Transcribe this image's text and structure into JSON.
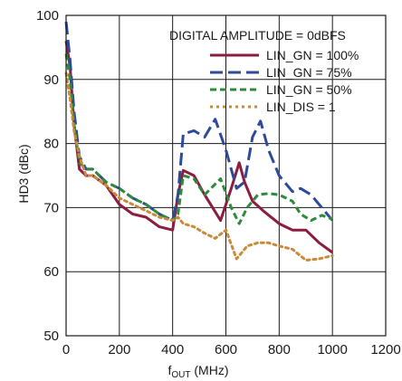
{
  "chart_data": {
    "type": "line",
    "xlabel_main": "f",
    "xlabel_sub": "OUT",
    "xlabel_unit": " (MHz)",
    "ylabel": "HD3 (dBc)",
    "xlim": [
      0,
      1200
    ],
    "ylim": [
      50,
      100
    ],
    "xticks": [
      0,
      200,
      400,
      600,
      800,
      1000,
      1200
    ],
    "yticks": [
      50,
      60,
      70,
      80,
      90,
      100
    ],
    "grid": true,
    "legend_position": "top-right",
    "legend_title": "DIGITAL AMPLITUDE = 0dBFS",
    "series": [
      {
        "name": "LIN_GN = 100%",
        "color": "#8b1e3f",
        "dash": "solid",
        "points": [
          [
            0,
            96
          ],
          [
            15,
            92
          ],
          [
            30,
            83
          ],
          [
            50,
            76
          ],
          [
            75,
            75
          ],
          [
            100,
            75
          ],
          [
            150,
            73.5
          ],
          [
            200,
            70.5
          ],
          [
            250,
            69
          ],
          [
            300,
            68.5
          ],
          [
            350,
            67
          ],
          [
            400,
            66.5
          ],
          [
            420,
            72
          ],
          [
            440,
            75.8
          ],
          [
            480,
            75
          ],
          [
            520,
            72
          ],
          [
            580,
            68
          ],
          [
            620,
            73
          ],
          [
            650,
            77
          ],
          [
            670,
            74
          ],
          [
            700,
            71
          ],
          [
            740,
            69.5
          ],
          [
            800,
            67.5
          ],
          [
            850,
            66.5
          ],
          [
            900,
            66.5
          ],
          [
            950,
            64.5
          ],
          [
            1000,
            63
          ]
        ]
      },
      {
        "name": "LIN_GN = 75%",
        "color": "#2e4a9a",
        "dash": "long-dash",
        "points": [
          [
            0,
            99
          ],
          [
            15,
            93
          ],
          [
            30,
            85
          ],
          [
            50,
            78
          ],
          [
            75,
            76
          ],
          [
            100,
            76
          ],
          [
            150,
            74
          ],
          [
            200,
            73
          ],
          [
            250,
            71.5
          ],
          [
            300,
            70.5
          ],
          [
            350,
            69
          ],
          [
            400,
            68
          ],
          [
            420,
            72
          ],
          [
            440,
            81.5
          ],
          [
            480,
            82
          ],
          [
            520,
            81
          ],
          [
            560,
            83.8
          ],
          [
            600,
            79
          ],
          [
            640,
            73
          ],
          [
            670,
            74
          ],
          [
            700,
            81
          ],
          [
            730,
            83.5
          ],
          [
            760,
            79
          ],
          [
            800,
            75
          ],
          [
            850,
            72.5
          ],
          [
            880,
            73
          ],
          [
            920,
            72
          ],
          [
            960,
            70
          ],
          [
            1000,
            68
          ]
        ]
      },
      {
        "name": "LIN_GN = 50%",
        "color": "#2e8b3a",
        "dash": "dash",
        "points": [
          [
            0,
            94
          ],
          [
            15,
            90
          ],
          [
            30,
            83
          ],
          [
            50,
            77
          ],
          [
            75,
            76
          ],
          [
            100,
            76
          ],
          [
            150,
            74
          ],
          [
            200,
            73
          ],
          [
            250,
            71.5
          ],
          [
            300,
            70.5
          ],
          [
            350,
            69
          ],
          [
            400,
            68
          ],
          [
            420,
            69
          ],
          [
            440,
            75
          ],
          [
            480,
            74.5
          ],
          [
            520,
            72
          ],
          [
            580,
            74.5
          ],
          [
            620,
            70
          ],
          [
            650,
            67.5
          ],
          [
            680,
            70
          ],
          [
            720,
            72
          ],
          [
            760,
            72.2
          ],
          [
            800,
            72
          ],
          [
            850,
            71
          ],
          [
            880,
            69
          ],
          [
            920,
            68
          ],
          [
            960,
            68.8
          ],
          [
            1000,
            68.2
          ]
        ]
      },
      {
        "name": "LIN_DIS = 1",
        "color": "#c98a3a",
        "dash": "dot",
        "points": [
          [
            0,
            91
          ],
          [
            15,
            87
          ],
          [
            30,
            82
          ],
          [
            50,
            78
          ],
          [
            75,
            75
          ],
          [
            100,
            75
          ],
          [
            150,
            73.5
          ],
          [
            200,
            71.5
          ],
          [
            250,
            70.5
          ],
          [
            300,
            69.5
          ],
          [
            350,
            68.5
          ],
          [
            400,
            68
          ],
          [
            420,
            68.5
          ],
          [
            440,
            67.5
          ],
          [
            480,
            67
          ],
          [
            520,
            66
          ],
          [
            560,
            65.2
          ],
          [
            600,
            66.5
          ],
          [
            640,
            62
          ],
          [
            680,
            64
          ],
          [
            720,
            64.5
          ],
          [
            760,
            64.5
          ],
          [
            800,
            64
          ],
          [
            850,
            63.5
          ],
          [
            900,
            61.8
          ],
          [
            950,
            62
          ],
          [
            1000,
            62.5
          ]
        ]
      }
    ]
  }
}
